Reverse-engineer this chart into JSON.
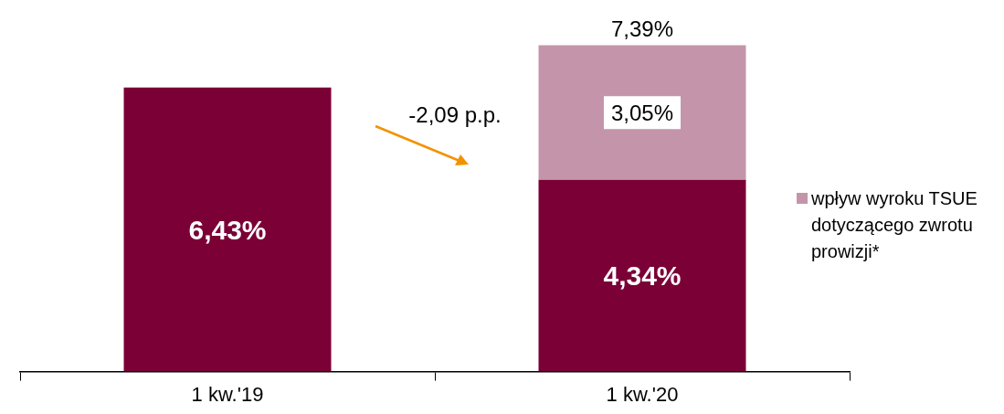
{
  "chart_data": {
    "type": "bar",
    "stacked": true,
    "categories": [
      "1 kw.'19",
      "1 kw.'20"
    ],
    "series": [
      {
        "color": "#7b0036",
        "values": [
          6.43,
          4.34
        ],
        "value_labels": [
          "6,43%",
          "4,34%"
        ]
      },
      {
        "name": "wpływ wyroku TSUE dotyczącego zwrotu prowizji*",
        "color": "#c495aa",
        "values": [
          null,
          3.05
        ],
        "value_labels": [
          null,
          "3,05%"
        ]
      }
    ],
    "totals": [
      null,
      "7,39%"
    ],
    "annotations": [
      "-2,09 p.p."
    ],
    "legend": "right"
  }
}
